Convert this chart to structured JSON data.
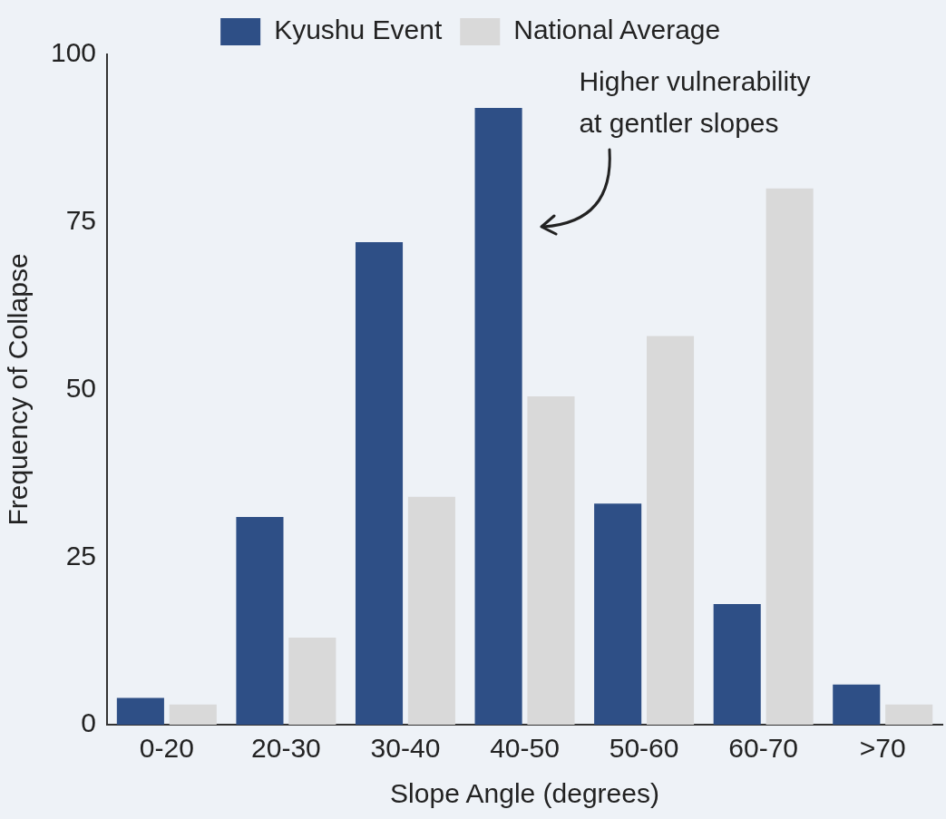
{
  "chart_data": {
    "type": "bar",
    "xlabel": "Slope Angle (degrees)",
    "ylabel": "Frequency of Collapse",
    "categories": [
      "0-20",
      "20-30",
      "30-40",
      "40-50",
      "50-60",
      "60-70",
      ">70"
    ],
    "series": [
      {
        "name": "Kyushu Event",
        "color": "#2e4f86",
        "values": [
          4,
          31,
          72,
          92,
          33,
          18,
          6
        ]
      },
      {
        "name": "National Average",
        "color": "#d9d9d9",
        "values": [
          3,
          13,
          34,
          49,
          58,
          80,
          3
        ]
      }
    ],
    "ylim": [
      0,
      100
    ],
    "yticks": [
      0,
      25,
      50,
      75,
      100
    ],
    "grid": false,
    "legend": "top",
    "annotations": [
      "Higher vulnerability\nat gentler slopes"
    ]
  }
}
